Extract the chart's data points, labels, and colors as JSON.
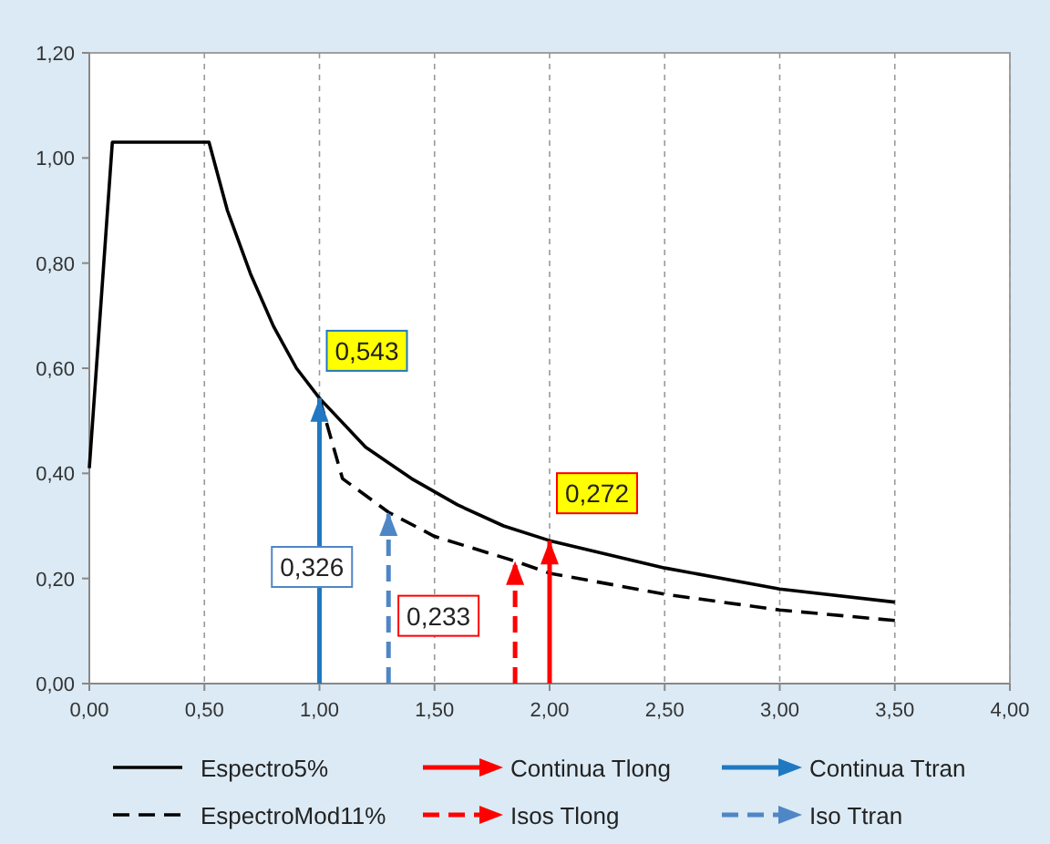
{
  "chart_data": {
    "type": "line",
    "xlim": [
      0,
      4
    ],
    "xticks": [
      {
        "value": 0,
        "label": "0,00"
      },
      {
        "value": 0.5,
        "label": "0,50"
      },
      {
        "value": 1,
        "label": "1,00"
      },
      {
        "value": 1.5,
        "label": "1,50"
      },
      {
        "value": 2,
        "label": "2,00"
      },
      {
        "value": 2.5,
        "label": "2,50"
      },
      {
        "value": 3,
        "label": "3,00"
      },
      {
        "value": 3.5,
        "label": "3,50"
      },
      {
        "value": 4,
        "label": "4,00"
      }
    ],
    "ylim": [
      0,
      1.2
    ],
    "yticks": [
      {
        "value": 0,
        "label": "0,00"
      },
      {
        "value": 0.2,
        "label": "0,20"
      },
      {
        "value": 0.4,
        "label": "0,40"
      },
      {
        "value": 0.6,
        "label": "0,60"
      },
      {
        "value": 0.8,
        "label": "0,80"
      },
      {
        "value": 1,
        "label": "1,00"
      },
      {
        "value": 1.2,
        "label": "1,20"
      }
    ],
    "grid": "x",
    "legend": "bottom",
    "marker": "none",
    "series": [
      {
        "name": "Espectro5%",
        "color": "#000000",
        "line_style": "solid",
        "x": [
          0,
          0.1,
          0.52,
          0.6,
          0.7,
          0.8,
          0.9,
          1.0,
          1.2,
          1.4,
          1.6,
          1.8,
          2.0,
          2.5,
          3.0,
          3.5
        ],
        "values": [
          0.41,
          1.03,
          1.03,
          0.9,
          0.78,
          0.68,
          0.6,
          0.543,
          0.45,
          0.39,
          0.34,
          0.3,
          0.272,
          0.22,
          0.18,
          0.155
        ]
      },
      {
        "name": "EspectroMod11%",
        "color": "#000000",
        "line_style": "dashed",
        "x": [
          1.0,
          1.1,
          1.3,
          1.5,
          1.85,
          2.0,
          2.5,
          3.0,
          3.5
        ],
        "values": [
          0.543,
          0.39,
          0.326,
          0.28,
          0.233,
          0.21,
          0.17,
          0.14,
          0.12
        ]
      },
      {
        "name": "Continua Tlong",
        "color": "#ff0000",
        "line_style": "solid",
        "x": [
          2.0,
          2.0
        ],
        "values": [
          0,
          0.272
        ]
      },
      {
        "name": "Isos Tlong",
        "color": "#ff0000",
        "line_style": "dashed",
        "x": [
          1.85,
          1.85
        ],
        "values": [
          0,
          0.233
        ]
      },
      {
        "name": "Continua Ttran",
        "color": "#1f78c1",
        "line_style": "solid",
        "x": [
          1.0,
          1.0
        ],
        "values": [
          0,
          0.543
        ]
      },
      {
        "name": "Iso Ttran",
        "color": "#4f86c6",
        "line_style": "dashed",
        "x": [
          1.3,
          1.3
        ],
        "values": [
          0,
          0.326
        ]
      }
    ],
    "annotations": [
      {
        "text": "0,543",
        "x": 1.0,
        "y": 0.543
      },
      {
        "text": "0,326",
        "x": 1.3,
        "y": 0.326
      },
      {
        "text": "0,233",
        "x": 1.85,
        "y": 0.233
      },
      {
        "text": "0,272",
        "x": 2.0,
        "y": 0.272
      }
    ]
  }
}
